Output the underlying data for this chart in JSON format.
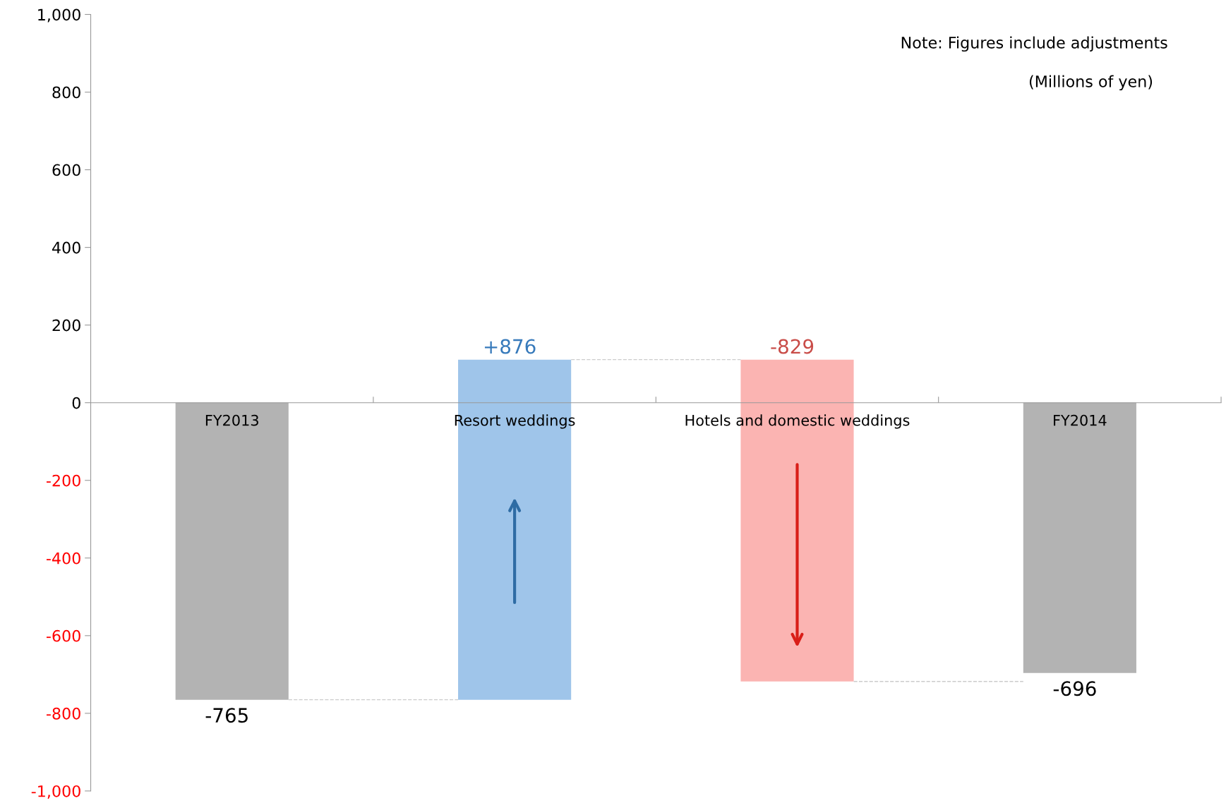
{
  "chart_data": {
    "type": "bar",
    "categories": [
      "FY2013",
      "Resort weddings",
      "Hotels and domestic weddings",
      "FY2014"
    ],
    "values": [
      -765,
      876,
      -829,
      -696
    ],
    "base": [
      0,
      -765,
      111,
      0
    ],
    "colors": [
      "#b3b3b3",
      "#9fc5ea",
      "#fbb4b2",
      "#b3b3b3"
    ],
    "value_labels": [
      "-765",
      "+876",
      "-829",
      "-696"
    ],
    "ylim": [
      -1000,
      1000
    ],
    "yticks": [
      {
        "value": 1000,
        "label": "1,000"
      },
      800,
      600,
      400,
      200,
      0,
      -200,
      -400,
      -600,
      -800,
      {
        "value": -1000,
        "label": "-1,000"
      }
    ],
    "grid": false,
    "annotations": [
      "Note: Figures include adjustments",
      "(Millions of yen)"
    ]
  }
}
